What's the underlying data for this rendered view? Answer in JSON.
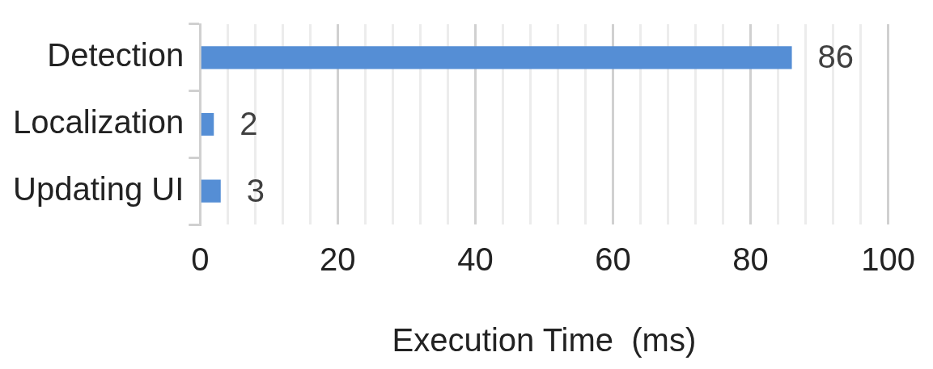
{
  "chart_data": {
    "type": "bar",
    "orientation": "horizontal",
    "xlabel": "Execution Time  (ms)",
    "categories": [
      "Detection",
      "Localization",
      "Updating UI"
    ],
    "values": [
      86,
      2,
      3
    ],
    "color": "#558ed5",
    "data_labels": true,
    "xlim": [
      0,
      100
    ],
    "xticks": [
      0,
      {
        "value": 4,
        "label": null
      },
      {
        "value": 8,
        "label": null
      },
      {
        "value": 12,
        "label": null
      },
      {
        "value": 16,
        "label": null
      },
      20,
      {
        "value": 24,
        "label": null
      },
      {
        "value": 28,
        "label": null
      },
      {
        "value": 32,
        "label": null
      },
      {
        "value": 36,
        "label": null
      },
      40,
      {
        "value": 44,
        "label": null
      },
      {
        "value": 48,
        "label": null
      },
      {
        "value": 52,
        "label": null
      },
      {
        "value": 56,
        "label": null
      },
      60,
      {
        "value": 64,
        "label": null
      },
      {
        "value": 68,
        "label": null
      },
      {
        "value": 72,
        "label": null
      },
      {
        "value": 76,
        "label": null
      },
      80,
      {
        "value": 84,
        "label": null
      },
      {
        "value": 88,
        "label": null
      },
      {
        "value": 92,
        "label": null
      },
      {
        "value": 96,
        "label": null
      },
      100
    ],
    "grid": "x"
  }
}
